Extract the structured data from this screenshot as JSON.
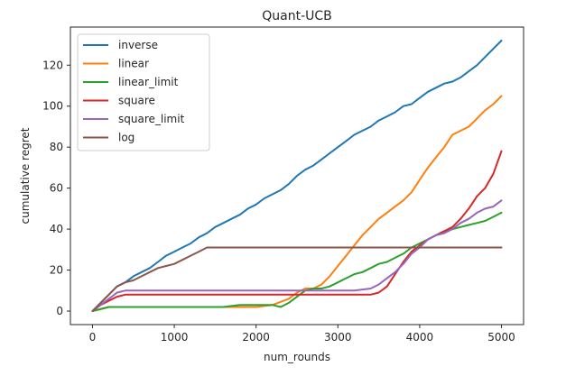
{
  "chart_data": {
    "type": "line",
    "title": "Quant-UCB",
    "xlabel": "num_rounds",
    "ylabel": "cumulative regret",
    "xlim": [
      -270,
      5270
    ],
    "ylim": [
      -6.6,
      138.6
    ],
    "xticks": [
      0,
      1000,
      2000,
      3000,
      4000,
      5000
    ],
    "yticks": [
      0,
      20,
      40,
      60,
      80,
      100,
      120
    ],
    "grid": false,
    "legend_position": "top-left",
    "series": [
      {
        "name": "inverse",
        "color": "#1f77b4",
        "x": [
          0,
          100,
          200,
          300,
          400,
          500,
          600,
          700,
          800,
          900,
          1000,
          1100,
          1200,
          1300,
          1400,
          1500,
          1600,
          1700,
          1800,
          1900,
          2000,
          2100,
          2200,
          2300,
          2400,
          2500,
          2600,
          2700,
          2800,
          2900,
          3000,
          3100,
          3200,
          3300,
          3400,
          3500,
          3600,
          3700,
          3800,
          3900,
          4000,
          4100,
          4200,
          4300,
          4400,
          4500,
          4600,
          4700,
          4800,
          4900,
          5000
        ],
        "y": [
          0,
          4,
          8,
          12,
          14,
          17,
          19,
          21,
          24,
          27,
          29,
          31,
          33,
          36,
          38,
          41,
          43,
          45,
          47,
          50,
          52,
          55,
          57,
          59,
          62,
          66,
          69,
          71,
          74,
          77,
          80,
          83,
          86,
          88,
          90,
          93,
          95,
          97,
          100,
          101,
          104,
          107,
          109,
          111,
          112,
          114,
          117,
          120,
          124,
          128,
          132
        ]
      },
      {
        "name": "linear",
        "color": "#ff7f0e",
        "x": [
          0,
          200,
          400,
          600,
          800,
          1000,
          1200,
          1400,
          1600,
          1800,
          2000,
          2200,
          2400,
          2500,
          2600,
          2700,
          2800,
          2900,
          3000,
          3100,
          3200,
          3300,
          3400,
          3500,
          3600,
          3700,
          3800,
          3900,
          4000,
          4100,
          4200,
          4300,
          4400,
          4500,
          4600,
          4700,
          4800,
          4900,
          5000
        ],
        "y": [
          0,
          2,
          2,
          2,
          2,
          2,
          2,
          2,
          2,
          2,
          2,
          3,
          6,
          9,
          11,
          11,
          13,
          17,
          22,
          27,
          32,
          37,
          41,
          45,
          48,
          51,
          54,
          58,
          64,
          70,
          75,
          80,
          86,
          88,
          90,
          94,
          98,
          101,
          105
        ]
      },
      {
        "name": "linear_limit",
        "color": "#2ca02c",
        "x": [
          0,
          200,
          400,
          600,
          800,
          1000,
          1200,
          1400,
          1600,
          1800,
          2000,
          2100,
          2200,
          2300,
          2400,
          2500,
          2600,
          2700,
          2800,
          2900,
          3000,
          3100,
          3200,
          3300,
          3400,
          3500,
          3600,
          3700,
          3800,
          3900,
          4000,
          4100,
          4200,
          4300,
          4400,
          4500,
          4600,
          4700,
          4800,
          4900,
          5000
        ],
        "y": [
          0,
          2,
          2,
          2,
          2,
          2,
          2,
          2,
          2,
          3,
          3,
          3,
          3,
          2,
          4,
          7,
          10,
          11,
          11,
          12,
          14,
          16,
          18,
          19,
          21,
          23,
          24,
          26,
          28,
          31,
          33,
          35,
          37,
          39,
          40,
          41,
          42,
          43,
          44,
          46,
          48
        ]
      },
      {
        "name": "square",
        "color": "#d62728",
        "x": [
          0,
          100,
          200,
          300,
          400,
          800,
          1200,
          1600,
          2000,
          2400,
          2800,
          3000,
          3200,
          3400,
          3500,
          3600,
          3700,
          3800,
          3900,
          4000,
          4100,
          4200,
          4300,
          4400,
          4500,
          4600,
          4700,
          4800,
          4900,
          5000
        ],
        "y": [
          0,
          3,
          5,
          7,
          8,
          8,
          8,
          8,
          8,
          8,
          8,
          8,
          8,
          8,
          9,
          12,
          18,
          24,
          29,
          32,
          35,
          37,
          39,
          41,
          45,
          50,
          56,
          60,
          67,
          78
        ]
      },
      {
        "name": "square_limit",
        "color": "#9467bd",
        "x": [
          0,
          100,
          200,
          300,
          400,
          800,
          1200,
          1600,
          2000,
          2400,
          2800,
          3000,
          3200,
          3400,
          3500,
          3600,
          3700,
          3800,
          3900,
          4000,
          4100,
          4200,
          4300,
          4400,
          4500,
          4600,
          4700,
          4800,
          4900,
          5000
        ],
        "y": [
          0,
          3,
          6,
          9,
          10,
          10,
          10,
          10,
          10,
          10,
          10,
          10,
          10,
          11,
          13,
          16,
          19,
          23,
          28,
          31,
          35,
          37,
          38,
          40,
          43,
          45,
          48,
          50,
          51,
          54
        ]
      },
      {
        "name": "log",
        "color": "#8c564b",
        "x": [
          0,
          100,
          200,
          300,
          400,
          500,
          600,
          700,
          800,
          900,
          1000,
          1100,
          1200,
          1300,
          1400,
          1500,
          2000,
          2500,
          3000,
          3500,
          4000,
          4500,
          5000
        ],
        "y": [
          0,
          4,
          8,
          12,
          14,
          15,
          17,
          19,
          21,
          22,
          23,
          25,
          27,
          29,
          31,
          31,
          31,
          31,
          31,
          31,
          31,
          31,
          31
        ]
      }
    ]
  }
}
